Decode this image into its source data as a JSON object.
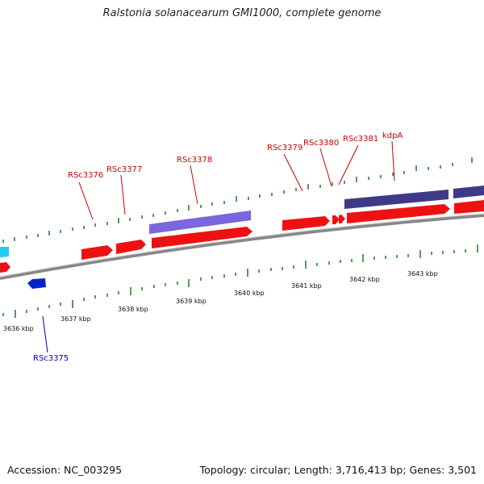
{
  "title": "Ralstonia solanacearum GMI1000, complete genome",
  "footer": {
    "accession": "Accession: NC_003295",
    "summary": "Topology: circular; Length: 3,716,413 bp; Genes: 3,501"
  },
  "colors": {
    "forward_cds": "#ee1111",
    "reverse_cds_blue": "#0a22cc",
    "reverse_cds_cyan": "#22ccee",
    "forward_rna_light": "#7a66dd",
    "forward_rna_dark": "#3f3a88",
    "tick": "#1a7a1a",
    "label_forward": "#cc0000",
    "label_reverse": "#0000bb",
    "backbone": "#888888"
  },
  "ticks": {
    "labels": [
      "3636 kbp",
      "3637 kbp",
      "3638 kbp",
      "3639 kbp",
      "3640 kbp",
      "3641 kbp",
      "3642 kbp",
      "3643 kbp"
    ]
  },
  "gene_labels": {
    "rsc3375": "RSc3375",
    "rsc3376": "RSc3376",
    "rsc3377": "RSc3377",
    "rsc3378": "RSc3378",
    "rsc3379": "RSc3379",
    "rsc3380": "RSc3380",
    "rsc3381": "RSc3381",
    "kdpa": "kdpA"
  }
}
